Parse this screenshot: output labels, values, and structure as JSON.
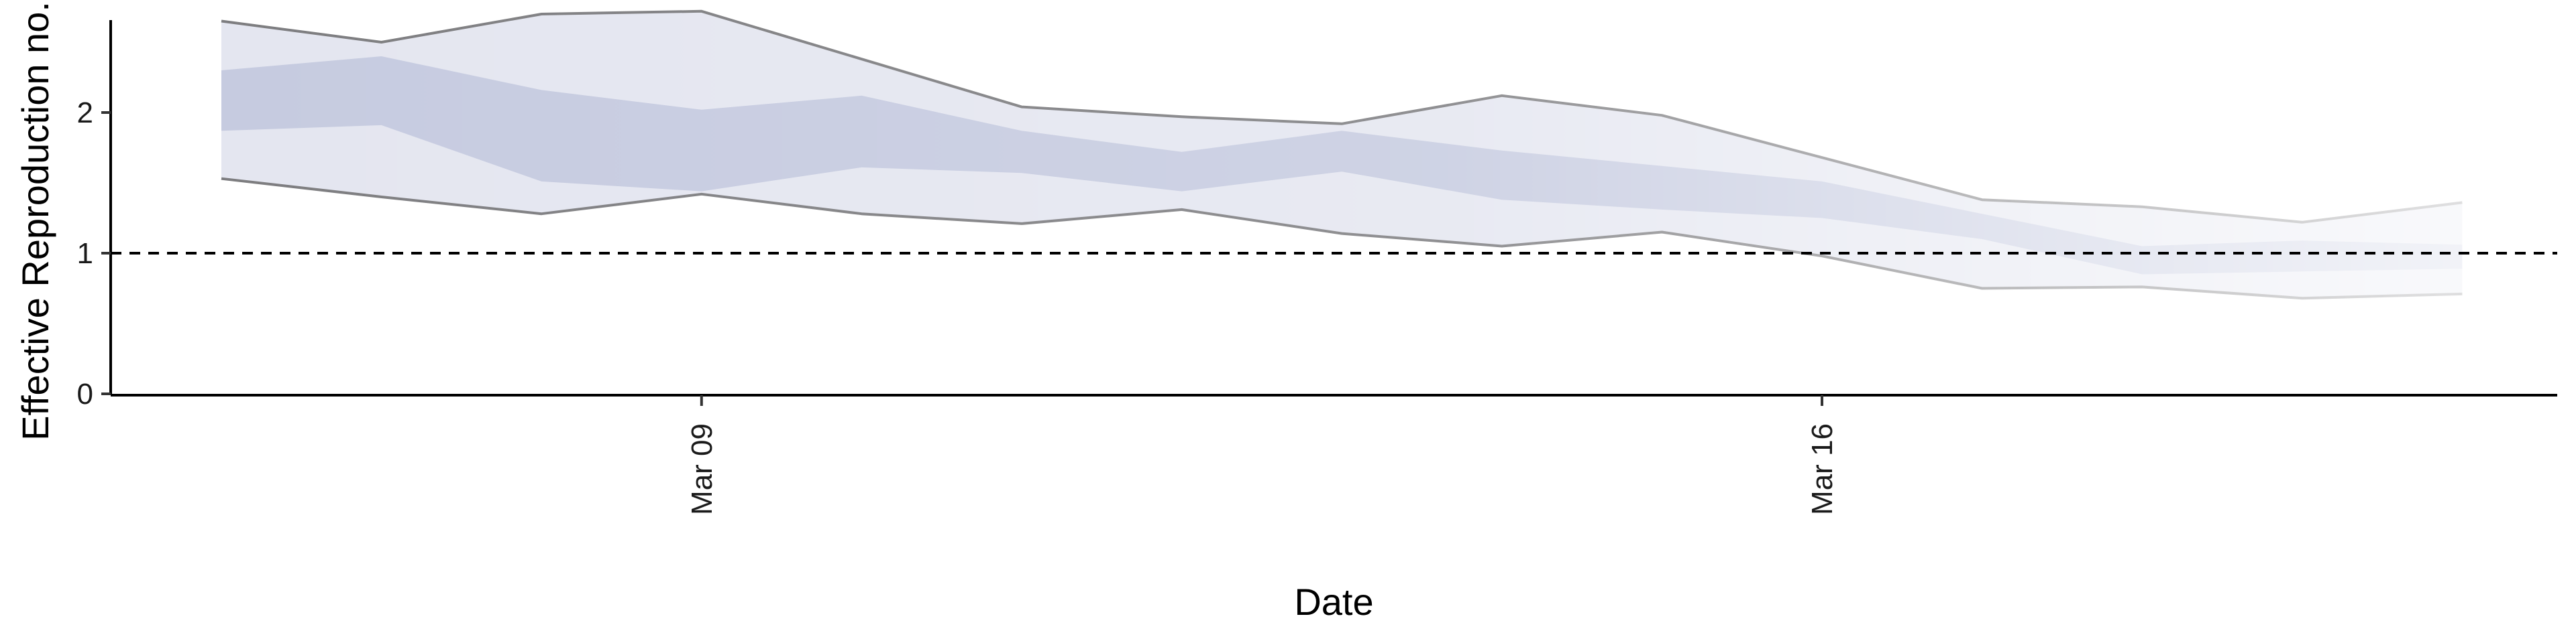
{
  "chart_data": {
    "type": "area",
    "xlabel": "Date",
    "ylabel": "Effective Reproduction no.",
    "x_ticks": [
      "Mar 09",
      "Mar 16"
    ],
    "y_ticks": [
      0,
      1,
      2
    ],
    "ylim": [
      -0.15,
      2.85
    ],
    "reference_line": {
      "y": 1,
      "style": "dashed"
    },
    "x": [
      "Mar 06",
      "Mar 07",
      "Mar 08",
      "Mar 09",
      "Mar 10",
      "Mar 11",
      "Mar 12",
      "Mar 13",
      "Mar 14",
      "Mar 15",
      "Mar 16",
      "Mar 17",
      "Mar 18",
      "Mar 19",
      "Mar 20",
      "Mar 21"
    ],
    "series": [
      {
        "band": "outer",
        "upper": [
          2.65,
          2.5,
          2.7,
          2.72,
          2.38,
          2.04,
          1.97,
          1.92,
          2.12,
          1.98,
          1.68,
          1.38,
          1.33,
          1.22,
          1.36,
          null
        ],
        "lower": [
          1.53,
          1.4,
          1.28,
          1.42,
          1.28,
          1.21,
          1.31,
          1.14,
          1.05,
          1.15,
          0.98,
          0.75,
          0.76,
          0.68,
          0.71,
          null
        ]
      },
      {
        "band": "inner",
        "upper": [
          2.3,
          2.4,
          2.16,
          2.02,
          2.12,
          1.87,
          1.72,
          1.87,
          1.73,
          1.62,
          1.51,
          1.28,
          1.05,
          1.09,
          1.06,
          null
        ],
        "lower": [
          1.87,
          1.91,
          1.51,
          1.44,
          1.61,
          1.57,
          1.44,
          1.58,
          1.38,
          1.31,
          1.25,
          1.1,
          0.85,
          0.87,
          0.89,
          null
        ]
      }
    ],
    "colors": {
      "outer_fill": "#e4e6f0",
      "inner_fill": "#c6cbe0",
      "bound_line": "#7d7d80",
      "axis": "#000000"
    },
    "grid": false,
    "legend": "none"
  }
}
